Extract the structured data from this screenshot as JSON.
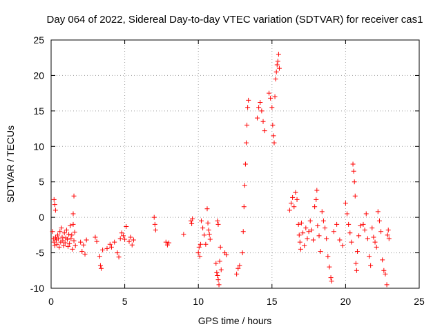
{
  "chart_data": {
    "type": "scatter",
    "title": "Day 064 of 2022, Sidereal Day-to-day VTEC variation (SDTVAR) for receiver cas1",
    "xlabel": "GPS time / hours",
    "ylabel": "SDTVAR / TECUs",
    "xlim": [
      0,
      25
    ],
    "ylim": [
      -10,
      25
    ],
    "xticks": [
      "0",
      "5",
      "10",
      "15",
      "20",
      "25"
    ],
    "yticks": [
      "-10",
      "-5",
      "0",
      "5",
      "10",
      "15",
      "20",
      "25"
    ],
    "grid": true,
    "marker": "plus",
    "color": "#ff0000",
    "series": [
      {
        "name": "SDTVAR",
        "points": [
          [
            0.1,
            -2.0
          ],
          [
            0.15,
            -3.0
          ],
          [
            0.2,
            -3.5
          ],
          [
            0.2,
            2.5
          ],
          [
            0.25,
            1.8
          ],
          [
            0.25,
            -4.0
          ],
          [
            0.3,
            -2.8
          ],
          [
            0.3,
            1.0
          ],
          [
            0.35,
            -3.2
          ],
          [
            0.4,
            -3.8
          ],
          [
            0.45,
            -2.5
          ],
          [
            0.5,
            -3.0
          ],
          [
            0.55,
            -4.2
          ],
          [
            0.6,
            -2.0
          ],
          [
            0.65,
            -3.5
          ],
          [
            0.7,
            -1.5
          ],
          [
            0.75,
            -2.8
          ],
          [
            0.8,
            -3.3
          ],
          [
            0.85,
            -4.0
          ],
          [
            0.9,
            -2.2
          ],
          [
            0.95,
            -3.6
          ],
          [
            1.0,
            -2.9
          ],
          [
            1.05,
            -1.8
          ],
          [
            1.1,
            -3.1
          ],
          [
            1.15,
            -4.1
          ],
          [
            1.2,
            -2.4
          ],
          [
            1.25,
            -3.7
          ],
          [
            1.3,
            -1.2
          ],
          [
            1.35,
            -3.0
          ],
          [
            1.4,
            -2.5
          ],
          [
            1.45,
            -4.5
          ],
          [
            1.5,
            -1.0
          ],
          [
            1.5,
            0.5
          ],
          [
            1.55,
            3.0
          ],
          [
            1.55,
            -3.3
          ],
          [
            1.6,
            -2.1
          ],
          [
            1.65,
            -4.0
          ],
          [
            2.0,
            -3.5
          ],
          [
            2.1,
            -4.8
          ],
          [
            2.2,
            -3.9
          ],
          [
            2.3,
            -5.2
          ],
          [
            2.4,
            -3.2
          ],
          [
            3.0,
            -2.8
          ],
          [
            3.1,
            -3.4
          ],
          [
            3.3,
            -5.5
          ],
          [
            3.35,
            -6.8
          ],
          [
            3.4,
            -7.2
          ],
          [
            3.5,
            -4.6
          ],
          [
            3.8,
            -4.4
          ],
          [
            4.0,
            -3.8
          ],
          [
            4.1,
            -4.2
          ],
          [
            4.3,
            -3.5
          ],
          [
            4.5,
            -5.0
          ],
          [
            4.6,
            -5.6
          ],
          [
            4.7,
            -3.0
          ],
          [
            4.8,
            -2.2
          ],
          [
            4.9,
            -2.6
          ],
          [
            5.0,
            -3.1
          ],
          [
            5.1,
            -1.3
          ],
          [
            5.3,
            -3.4
          ],
          [
            5.4,
            -2.8
          ],
          [
            5.5,
            -3.9
          ],
          [
            5.6,
            -3.2
          ],
          [
            7.0,
            0.0
          ],
          [
            7.05,
            -1.0
          ],
          [
            7.1,
            -1.8
          ],
          [
            7.8,
            -3.5
          ],
          [
            7.9,
            -3.9
          ],
          [
            8.0,
            -3.6
          ],
          [
            9.0,
            -2.4
          ],
          [
            9.5,
            -0.5
          ],
          [
            9.55,
            -0.9
          ],
          [
            9.6,
            -0.2
          ],
          [
            10.0,
            -5.0
          ],
          [
            10.05,
            -4.2
          ],
          [
            10.1,
            -5.5
          ],
          [
            10.15,
            -3.8
          ],
          [
            10.2,
            -0.5
          ],
          [
            10.3,
            -1.5
          ],
          [
            10.4,
            -2.5
          ],
          [
            10.5,
            -3.8
          ],
          [
            10.6,
            1.2
          ],
          [
            10.65,
            -0.8
          ],
          [
            10.7,
            -1.8
          ],
          [
            10.75,
            -2.4
          ],
          [
            10.8,
            -3.1
          ],
          [
            11.2,
            -6.5
          ],
          [
            11.25,
            -7.8
          ],
          [
            11.3,
            -8.2
          ],
          [
            11.35,
            -8.8
          ],
          [
            11.4,
            -9.5
          ],
          [
            11.45,
            -6.2
          ],
          [
            11.5,
            -4.2
          ],
          [
            11.55,
            -7.4
          ],
          [
            11.3,
            -0.5
          ],
          [
            11.35,
            -1.0
          ],
          [
            11.8,
            -5.0
          ],
          [
            11.9,
            -5.3
          ],
          [
            12.6,
            -8.0
          ],
          [
            12.7,
            -7.2
          ],
          [
            12.8,
            -6.8
          ],
          [
            13.0,
            -5.0
          ],
          [
            13.05,
            -2.0
          ],
          [
            13.1,
            1.5
          ],
          [
            13.15,
            4.5
          ],
          [
            13.2,
            7.5
          ],
          [
            13.25,
            10.5
          ],
          [
            13.3,
            13.0
          ],
          [
            13.35,
            15.5
          ],
          [
            13.4,
            16.5
          ],
          [
            14.0,
            14.0
          ],
          [
            14.1,
            15.5
          ],
          [
            14.2,
            16.2
          ],
          [
            14.3,
            15.0
          ],
          [
            14.4,
            13.5
          ],
          [
            14.5,
            12.2
          ],
          [
            14.8,
            17.5
          ],
          [
            14.9,
            16.8
          ],
          [
            15.0,
            15.5
          ],
          [
            15.05,
            13.0
          ],
          [
            15.1,
            11.5
          ],
          [
            15.15,
            10.5
          ],
          [
            15.2,
            17.0
          ],
          [
            15.25,
            19.5
          ],
          [
            15.3,
            20.5
          ],
          [
            15.35,
            21.5
          ],
          [
            15.4,
            22.0
          ],
          [
            15.45,
            23.0
          ],
          [
            15.5,
            21.0
          ],
          [
            16.2,
            1.0
          ],
          [
            16.3,
            2.0
          ],
          [
            16.4,
            2.8
          ],
          [
            16.5,
            1.5
          ],
          [
            16.6,
            3.5
          ],
          [
            16.7,
            2.5
          ],
          [
            16.8,
            -1.0
          ],
          [
            16.85,
            -2.5
          ],
          [
            16.9,
            -3.5
          ],
          [
            16.95,
            -4.5
          ],
          [
            17.0,
            -0.8
          ],
          [
            17.1,
            -2.2
          ],
          [
            17.2,
            -4.0
          ],
          [
            17.3,
            -1.5
          ],
          [
            17.4,
            -3.0
          ],
          [
            17.5,
            -2.0
          ],
          [
            17.6,
            -0.5
          ],
          [
            17.7,
            -1.8
          ],
          [
            17.8,
            -3.2
          ],
          [
            17.9,
            1.5
          ],
          [
            18.0,
            2.5
          ],
          [
            18.05,
            3.8
          ],
          [
            18.1,
            -1.2
          ],
          [
            18.2,
            -2.6
          ],
          [
            18.3,
            -4.8
          ],
          [
            18.4,
            0.8
          ],
          [
            18.5,
            -0.5
          ],
          [
            18.6,
            -1.5
          ],
          [
            18.7,
            -3.0
          ],
          [
            18.8,
            -5.5
          ],
          [
            18.9,
            -7.0
          ],
          [
            19.0,
            -8.5
          ],
          [
            19.05,
            -9.0
          ],
          [
            19.2,
            -2.0
          ],
          [
            19.4,
            -1.0
          ],
          [
            19.6,
            -3.2
          ],
          [
            19.8,
            -4.0
          ],
          [
            20.0,
            2.0
          ],
          [
            20.1,
            0.5
          ],
          [
            20.2,
            -1.0
          ],
          [
            20.3,
            -2.2
          ],
          [
            20.4,
            -3.5
          ],
          [
            20.5,
            7.5
          ],
          [
            20.55,
            6.5
          ],
          [
            20.6,
            5.0
          ],
          [
            20.65,
            3.0
          ],
          [
            20.7,
            -6.5
          ],
          [
            20.75,
            -7.5
          ],
          [
            20.8,
            -4.8
          ],
          [
            20.9,
            -2.6
          ],
          [
            21.0,
            -1.2
          ],
          [
            21.2,
            -1.0
          ],
          [
            21.3,
            -1.8
          ],
          [
            21.4,
            0.5
          ],
          [
            21.5,
            -3.0
          ],
          [
            21.6,
            -5.5
          ],
          [
            21.7,
            -6.8
          ],
          [
            21.8,
            -1.5
          ],
          [
            21.9,
            -2.8
          ],
          [
            22.0,
            -3.5
          ],
          [
            22.1,
            -4.2
          ],
          [
            22.2,
            0.8
          ],
          [
            22.3,
            -0.5
          ],
          [
            22.4,
            -2.0
          ],
          [
            22.5,
            -6.0
          ],
          [
            22.6,
            -7.5
          ],
          [
            22.7,
            -8.0
          ],
          [
            22.8,
            -9.5
          ],
          [
            22.85,
            -2.5
          ],
          [
            22.9,
            -1.8
          ],
          [
            22.95,
            -3.0
          ]
        ]
      }
    ]
  }
}
